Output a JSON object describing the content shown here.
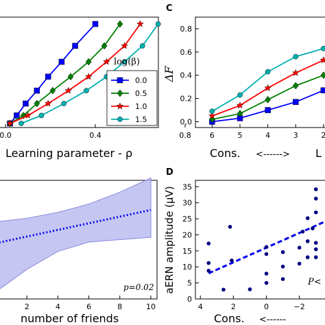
{
  "chart_data": [
    {
      "panel": "",
      "type": "line",
      "title": "",
      "xlabel": "Learning parameter - ρ",
      "ylabel": "",
      "xlim": [
        0.0,
        0.8
      ],
      "xticks": [
        0.0,
        0.4,
        0.8
      ],
      "xticklabels": [
        "0.0",
        "0.4",
        "0.8"
      ],
      "legend_title": "log(β)",
      "legend_position": "right",
      "series": [
        {
          "name": "0.0",
          "color": "#0000ff",
          "marker": "square",
          "x": [
            0.02,
            0.05,
            0.09,
            0.14,
            0.19,
            0.25,
            0.31,
            0.4
          ],
          "y": [
            0.0,
            0.08,
            0.2,
            0.33,
            0.47,
            0.62,
            0.78,
            1.0
          ]
        },
        {
          "name": "0.5",
          "color": "#008000",
          "marker": "diamond",
          "x": [
            0.02,
            0.08,
            0.14,
            0.21,
            0.29,
            0.37,
            0.44,
            0.51
          ],
          "y": [
            0.0,
            0.08,
            0.2,
            0.33,
            0.47,
            0.62,
            0.78,
            1.0
          ]
        },
        {
          "name": "1.0",
          "color": "#ff0000",
          "marker": "star",
          "x": [
            0.02,
            0.1,
            0.19,
            0.28,
            0.37,
            0.45,
            0.53,
            0.6
          ],
          "y": [
            0.0,
            0.08,
            0.2,
            0.33,
            0.47,
            0.62,
            0.78,
            1.0
          ]
        },
        {
          "name": "1.5",
          "color": "#00b0b0",
          "marker": "circle",
          "x": [
            0.07,
            0.16,
            0.26,
            0.36,
            0.45,
            0.53,
            0.61,
            0.68
          ],
          "y": [
            0.0,
            0.08,
            0.2,
            0.33,
            0.47,
            0.62,
            0.78,
            1.0
          ]
        }
      ]
    },
    {
      "panel": "C",
      "type": "line",
      "title": "",
      "xlabel": "Cons.",
      "xlabel_arrow": "<------>",
      "xlabel_right": "L",
      "ylabel": "ΔF",
      "xlim": [
        6.6,
        1.8
      ],
      "ylim": [
        -0.05,
        0.9
      ],
      "xticks": [
        6,
        5,
        4,
        3,
        2
      ],
      "yticks": [
        0.0,
        0.2,
        0.4,
        0.6,
        0.8
      ],
      "yticklabels": [
        "0.0",
        "0.2",
        "0.4",
        "0.6",
        "0.8"
      ],
      "series": [
        {
          "name": "0.0",
          "color": "#0000ff",
          "marker": "square",
          "x": [
            6,
            5,
            4,
            3,
            2
          ],
          "y": [
            0.0,
            0.03,
            0.1,
            0.17,
            0.27
          ]
        },
        {
          "name": "0.5",
          "color": "#008000",
          "marker": "diamond",
          "x": [
            6,
            5,
            4,
            3,
            2
          ],
          "y": [
            0.02,
            0.07,
            0.19,
            0.31,
            0.4
          ]
        },
        {
          "name": "1.0",
          "color": "#ff0000",
          "marker": "star",
          "x": [
            6,
            5,
            4,
            3,
            2
          ],
          "y": [
            0.05,
            0.14,
            0.29,
            0.42,
            0.53
          ]
        },
        {
          "name": "1.5",
          "color": "#00b0b0",
          "marker": "circle",
          "x": [
            6,
            5,
            4,
            3,
            2
          ],
          "y": [
            0.09,
            0.23,
            0.43,
            0.56,
            0.63
          ]
        }
      ]
    },
    {
      "panel": "",
      "type": "line",
      "title": "",
      "xlabel": "number of friends",
      "ylabel": "",
      "xlim": [
        0,
        10.4
      ],
      "ylim": [
        0,
        1
      ],
      "xticks": [
        2,
        4,
        6,
        8,
        10
      ],
      "annotation": "p=0.02",
      "series": [
        {
          "name": "",
          "color": "#0000ee",
          "style": "dotted",
          "x": [
            0,
            10
          ],
          "y": [
            0.47,
            0.75
          ]
        }
      ],
      "band": {
        "color": "#b8b8f0",
        "x": [
          0,
          2,
          4,
          6,
          8,
          10
        ],
        "lower": [
          0.06,
          0.25,
          0.4,
          0.48,
          0.5,
          0.52
        ],
        "upper": [
          0.65,
          0.68,
          0.73,
          0.8,
          0.9,
          1.02
        ]
      }
    },
    {
      "panel": "D",
      "type": "scatter",
      "title": "",
      "xlabel": "Cons.",
      "xlabel_arrow": "<------",
      "ylabel": "aERN amplitude (μV)",
      "xlim": [
        4.3,
        -3.8
      ],
      "ylim": [
        0,
        37
      ],
      "xticks": [
        4,
        2,
        0,
        -2
      ],
      "xticklabels": [
        "4",
        "2",
        "0",
        "−2"
      ],
      "yticks": [
        0,
        5,
        10,
        15,
        20,
        25,
        30,
        35
      ],
      "annotation": "P<",
      "points": [
        {
          "x": 3.5,
          "y": 17.3
        },
        {
          "x": 3.5,
          "y": 11.2
        },
        {
          "x": 3.5,
          "y": 8.8
        },
        {
          "x": 2.6,
          "y": 2.9
        },
        {
          "x": 2.2,
          "y": 22.5
        },
        {
          "x": 2.1,
          "y": 12.0
        },
        {
          "x": 1.0,
          "y": 3.0
        },
        {
          "x": 0.0,
          "y": 16.2
        },
        {
          "x": 0.0,
          "y": 14.0
        },
        {
          "x": 0.0,
          "y": 7.9
        },
        {
          "x": 0.0,
          "y": 5.0
        },
        {
          "x": -1.0,
          "y": 14.6
        },
        {
          "x": -1.0,
          "y": 10.1
        },
        {
          "x": -1.0,
          "y": 6.2
        },
        {
          "x": -2.0,
          "y": 16.0
        },
        {
          "x": -2.0,
          "y": 11.0
        },
        {
          "x": -2.2,
          "y": 21.0
        },
        {
          "x": -2.5,
          "y": 25.2
        },
        {
          "x": -2.5,
          "y": 18.0
        },
        {
          "x": -2.5,
          "y": 13.0
        },
        {
          "x": -2.8,
          "y": 22.0
        },
        {
          "x": -3.0,
          "y": 34.2
        },
        {
          "x": -3.0,
          "y": 31.3
        },
        {
          "x": -3.0,
          "y": 27.0
        },
        {
          "x": -3.0,
          "y": 17.5
        },
        {
          "x": -3.0,
          "y": 15.5
        },
        {
          "x": -3.0,
          "y": 13.0
        }
      ],
      "fit": {
        "color": "#0000ee",
        "style": "dashed",
        "x": [
          3.5,
          -3.8
        ],
        "y": [
          8.0,
          24.7
        ]
      }
    }
  ]
}
